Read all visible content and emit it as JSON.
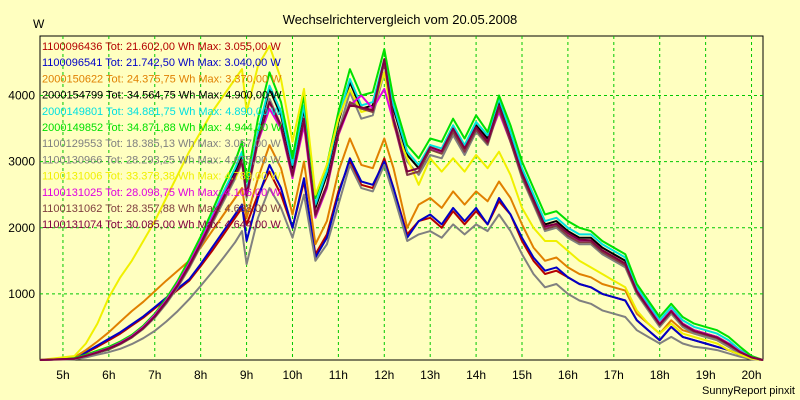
{
  "chart_data": {
    "type": "line",
    "title": "Wechselrichtervergleich vom 20.05.2008",
    "ylabel": "W",
    "footer": "SunnyReport pinxit",
    "x_ticks": [
      "5h",
      "6h",
      "7h",
      "8h",
      "9h",
      "10h",
      "11h",
      "12h",
      "13h",
      "14h",
      "15h",
      "16h",
      "17h",
      "18h",
      "19h",
      "20h"
    ],
    "y_ticks": [
      1000,
      2000,
      3000,
      4000
    ],
    "xlim": [
      4.5,
      20.25
    ],
    "ylim": [
      0,
      4900
    ],
    "grid": true,
    "legend_position": "top-left inside",
    "x": [
      4.5,
      5.25,
      5.5,
      5.75,
      6.0,
      6.25,
      6.5,
      6.75,
      7.0,
      7.25,
      7.5,
      7.75,
      8.0,
      8.25,
      8.5,
      8.75,
      8.9,
      9.0,
      9.25,
      9.5,
      9.75,
      10.0,
      10.25,
      10.5,
      10.75,
      11.0,
      11.25,
      11.5,
      11.75,
      12.0,
      12.2,
      12.5,
      12.75,
      13.0,
      13.25,
      13.5,
      13.75,
      14.0,
      14.25,
      14.5,
      14.75,
      15.0,
      15.25,
      15.5,
      15.75,
      16.0,
      16.25,
      16.5,
      16.75,
      17.0,
      17.25,
      17.5,
      17.75,
      18.0,
      18.25,
      18.5,
      18.75,
      19.0,
      19.25,
      19.5,
      19.75,
      20.0,
      20.25
    ],
    "series": [
      {
        "name": "1100096436 Tot: 21.602,00 Wh Max: 3.055,00 W",
        "color": "#b40000",
        "values": [
          0,
          30,
          110,
          200,
          300,
          400,
          520,
          640,
          780,
          920,
          1060,
          1200,
          1420,
          1650,
          1900,
          2150,
          2300,
          2050,
          2500,
          2850,
          2500,
          2000,
          2700,
          1600,
          1900,
          2550,
          3000,
          2650,
          2600,
          3050,
          2600,
          1900,
          2100,
          2150,
          2000,
          2250,
          2050,
          2250,
          2050,
          2400,
          2200,
          1800,
          1500,
          1300,
          1350,
          1250,
          1150,
          1100,
          1000,
          950,
          900,
          600,
          450,
          300,
          500,
          350,
          300,
          250,
          200,
          150,
          80,
          20,
          0
        ]
      },
      {
        "name": "1100096541 Tot: 21.742,50 Wh Max: 3.040,00 W",
        "color": "#0000c8",
        "values": [
          0,
          30,
          120,
          220,
          320,
          420,
          540,
          660,
          800,
          940,
          1080,
          1220,
          1450,
          1700,
          1950,
          2200,
          2350,
          1800,
          2450,
          2950,
          2600,
          2000,
          2750,
          1550,
          1850,
          2500,
          3050,
          2700,
          2650,
          3000,
          2600,
          1850,
          2100,
          2200,
          2050,
          2300,
          2100,
          2300,
          2050,
          2450,
          2200,
          1850,
          1550,
          1350,
          1400,
          1250,
          1150,
          1100,
          1000,
          950,
          900,
          600,
          450,
          300,
          500,
          350,
          300,
          250,
          200,
          150,
          80,
          20,
          0
        ]
      },
      {
        "name": "2000150622 Tot: 24.375,75 Wh Max: 3.370,00 W",
        "color": "#e08000",
        "values": [
          0,
          40,
          150,
          280,
          420,
          580,
          740,
          880,
          1040,
          1200,
          1350,
          1500,
          1700,
          1950,
          2200,
          2450,
          2600,
          2150,
          2750,
          3250,
          2900,
          2200,
          3000,
          1750,
          2100,
          2850,
          3350,
          2950,
          2900,
          3350,
          2900,
          2000,
          2350,
          2450,
          2300,
          2550,
          2350,
          2550,
          2400,
          2700,
          2450,
          2050,
          1700,
          1500,
          1550,
          1400,
          1300,
          1250,
          1150,
          1100,
          1050,
          700,
          550,
          400,
          600,
          450,
          400,
          350,
          300,
          200,
          100,
          30,
          0
        ]
      },
      {
        "name": "2000154799 Tot: 34.564,75 Wh Max: 4.900,00 W",
        "color": "#000000",
        "values": [
          0,
          20,
          60,
          110,
          160,
          240,
          340,
          480,
          660,
          880,
          1150,
          1450,
          1800,
          2150,
          2500,
          2850,
          3100,
          2500,
          3400,
          4100,
          3700,
          2900,
          3800,
          2300,
          2800,
          3600,
          4200,
          3800,
          3850,
          4500,
          3800,
          3100,
          2900,
          3200,
          3150,
          3500,
          3200,
          3550,
          3350,
          3900,
          3400,
          2850,
          2450,
          2050,
          2100,
          1950,
          1850,
          1850,
          1700,
          1600,
          1500,
          1050,
          800,
          550,
          750,
          550,
          450,
          400,
          350,
          250,
          150,
          50,
          0
        ]
      },
      {
        "name": "2000149801 Tot: 34.881,75 Wh Max: 4.890,00 W",
        "color": "#00e0e0",
        "values": [
          0,
          25,
          70,
          120,
          180,
          260,
          360,
          500,
          680,
          900,
          1170,
          1480,
          1820,
          2180,
          2550,
          2900,
          3150,
          2550,
          3450,
          4150,
          3750,
          2950,
          3850,
          2350,
          2850,
          3650,
          4250,
          3850,
          3900,
          4550,
          3850,
          3150,
          2950,
          3250,
          3200,
          3550,
          3250,
          3600,
          3400,
          3950,
          3450,
          2900,
          2500,
          2100,
          2150,
          2000,
          1900,
          1900,
          1750,
          1650,
          1550,
          1100,
          850,
          600,
          800,
          600,
          500,
          450,
          400,
          300,
          150,
          50,
          0
        ]
      },
      {
        "name": "2000149852 Tot: 34.871,88 Wh Max: 4.944,00 W",
        "color": "#00e000",
        "values": [
          0,
          30,
          80,
          140,
          200,
          280,
          380,
          520,
          700,
          930,
          1200,
          1520,
          1870,
          2250,
          2650,
          3000,
          3300,
          2700,
          3650,
          4350,
          3900,
          3050,
          4000,
          2450,
          2950,
          3750,
          4400,
          4000,
          4050,
          4700,
          3950,
          3250,
          3050,
          3350,
          3300,
          3650,
          3350,
          3700,
          3450,
          4000,
          3550,
          3000,
          2600,
          2200,
          2250,
          2100,
          2000,
          1950,
          1800,
          1700,
          1600,
          1150,
          900,
          650,
          850,
          650,
          550,
          500,
          450,
          350,
          200,
          60,
          0
        ]
      },
      {
        "name": "1100129553 Tot: 18.385,13 Wh Max: 3.057,00 W",
        "color": "#808080",
        "values": [
          0,
          10,
          40,
          80,
          120,
          170,
          240,
          330,
          440,
          580,
          740,
          920,
          1120,
          1330,
          1550,
          1780,
          1950,
          1450,
          2150,
          2600,
          2300,
          1850,
          2500,
          1500,
          1750,
          2350,
          2950,
          2600,
          2550,
          2950,
          2500,
          1800,
          1900,
          1950,
          1850,
          2050,
          1900,
          2050,
          1950,
          2200,
          1950,
          1600,
          1300,
          1100,
          1150,
          1000,
          900,
          850,
          750,
          700,
          650,
          450,
          350,
          250,
          350,
          250,
          200,
          180,
          150,
          100,
          50,
          10,
          0
        ]
      },
      {
        "name": "1100130966 Tot: 28.293,25 Wh Max: 4.675,00 W",
        "color": "#808080",
        "values": [
          0,
          20,
          60,
          110,
          165,
          240,
          340,
          470,
          640,
          850,
          1100,
          1390,
          1720,
          2060,
          2400,
          2740,
          2980,
          2450,
          3300,
          3950,
          3550,
          2800,
          3650,
          2200,
          2650,
          3450,
          4050,
          3650,
          3700,
          4350,
          3650,
          3000,
          2800,
          3100,
          3050,
          3400,
          3100,
          3450,
          3250,
          3800,
          3300,
          2750,
          2350,
          1950,
          2000,
          1850,
          1750,
          1750,
          1600,
          1500,
          1400,
          1000,
          750,
          500,
          700,
          500,
          400,
          350,
          300,
          200,
          100,
          40,
          0
        ]
      },
      {
        "name": "1100131006 Tot: 33.378,38 Wh Max: 4.789,00 W",
        "color": "#f0f000",
        "values": [
          0,
          60,
          250,
          550,
          950,
          1250,
          1500,
          1800,
          2100,
          2450,
          2800,
          3150,
          3450,
          3750,
          4000,
          4250,
          4400,
          3750,
          4450,
          4750,
          4250,
          3300,
          4100,
          2500,
          2950,
          3650,
          4100,
          3750,
          3800,
          4350,
          3550,
          3050,
          2650,
          3050,
          2850,
          3050,
          2850,
          3100,
          2900,
          3150,
          2800,
          2300,
          2000,
          1800,
          1800,
          1650,
          1500,
          1400,
          1300,
          1200,
          1100,
          750,
          550,
          400,
          550,
          400,
          350,
          300,
          250,
          150,
          80,
          20,
          0
        ]
      },
      {
        "name": "1100131025 Tot: 28.098,75 Wh Max: 4.106,00 W",
        "color": "#e000e0",
        "values": [
          0,
          20,
          65,
          120,
          180,
          260,
          360,
          500,
          680,
          900,
          1160,
          1460,
          1800,
          2150,
          2500,
          2800,
          3000,
          2500,
          3300,
          3800,
          3500,
          2750,
          3550,
          2150,
          2600,
          3400,
          3850,
          4000,
          3800,
          4100,
          3600,
          2800,
          2850,
          3200,
          3150,
          3500,
          3150,
          3500,
          3300,
          3750,
          3300,
          2800,
          2400,
          2000,
          2050,
          1900,
          1800,
          1800,
          1650,
          1550,
          1450,
          1050,
          800,
          550,
          750,
          550,
          450,
          400,
          350,
          250,
          130,
          40,
          0
        ]
      },
      {
        "name": "1100131062 Tot: 28.357,88 Wh Max: 4.638,00 W",
        "color": "#804040",
        "values": [
          0,
          20,
          60,
          110,
          170,
          245,
          345,
          480,
          655,
          870,
          1120,
          1410,
          1740,
          2090,
          2440,
          2780,
          3000,
          2480,
          3320,
          3900,
          3520,
          2780,
          3620,
          2180,
          2630,
          3420,
          3900,
          3800,
          3750,
          4500,
          3620,
          2800,
          2850,
          3180,
          3120,
          3450,
          3150,
          3480,
          3270,
          3800,
          3300,
          2780,
          2380,
          1980,
          2030,
          1880,
          1780,
          1780,
          1630,
          1530,
          1430,
          1020,
          780,
          530,
          730,
          530,
          430,
          380,
          330,
          230,
          120,
          40,
          0
        ]
      },
      {
        "name": "1100131074 Tot: 30.085,00 Wh Max: 4.644,00 W",
        "color": "#800040",
        "values": [
          0,
          20,
          62,
          115,
          175,
          250,
          350,
          485,
          660,
          880,
          1130,
          1430,
          1760,
          2110,
          2460,
          2800,
          3020,
          2500,
          3350,
          3900,
          3550,
          2800,
          3650,
          2200,
          2650,
          3450,
          3850,
          3820,
          3780,
          4550,
          3650,
          2850,
          2900,
          3220,
          3160,
          3500,
          3200,
          3520,
          3300,
          3850,
          3350,
          2820,
          2420,
          2020,
          2060,
          1920,
          1820,
          1810,
          1660,
          1560,
          1460,
          1040,
          790,
          540,
          740,
          540,
          440,
          390,
          340,
          240,
          120,
          40,
          0
        ]
      }
    ]
  }
}
